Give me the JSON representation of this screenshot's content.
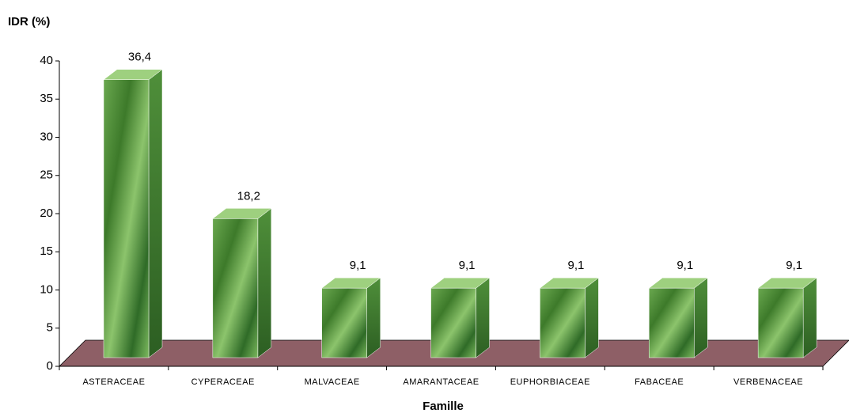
{
  "chart_data": {
    "type": "bar3d",
    "y_axis_title": "IDR (%)",
    "x_axis_title": "Famille",
    "categories": [
      "ASTERACEAE",
      "CYPERACEAE",
      "MALVACEAE",
      "AMARANTACEAE",
      "EUPHORBIACEAE",
      "FABACEAE",
      "VERBENACEAE"
    ],
    "values": [
      36.4,
      18.2,
      9.1,
      9.1,
      9.1,
      9.1,
      9.1
    ],
    "value_labels": [
      "36,4",
      "18,2",
      "9,1",
      "9,1",
      "9,1",
      "9,1",
      "9,1"
    ],
    "ylim": [
      0,
      40
    ],
    "yticks": [
      0,
      5,
      10,
      15,
      20,
      25,
      30,
      35,
      40
    ]
  }
}
